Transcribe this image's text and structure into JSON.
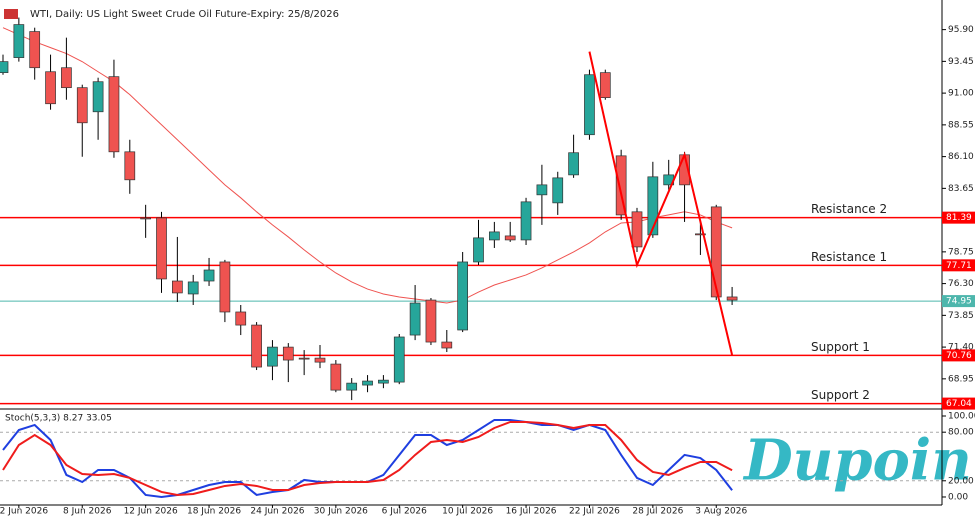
{
  "logo": "Dupoin",
  "chart_data": [
    {
      "type": "candlestick",
      "title": "WTI, Daily:  US Light Sweet Crude Oil Future-Expiry: 25/8/2026",
      "categories": [
        null,
        "2 Jun 2026",
        null,
        null,
        null,
        "8 Jun 2026",
        null,
        null,
        null,
        "12 Jun 2026",
        null,
        null,
        null,
        "18 Jun 2026",
        null,
        null,
        null,
        "24 Jun 2026",
        null,
        null,
        null,
        "30 Jun 2026",
        null,
        null,
        null,
        "6 Jul 2026",
        null,
        null,
        null,
        "10 Jul 2026",
        null,
        null,
        null,
        "16 Jul 2026",
        null,
        null,
        null,
        "22 Jul 2026",
        null,
        null,
        null,
        "28 Jul 2026",
        null,
        null,
        null,
        "3 Aug 2026",
        null
      ],
      "open": [
        92.58,
        93.74,
        95.75,
        92.65,
        92.96,
        91.42,
        89.56,
        92.27,
        86.47,
        81.37,
        81.37,
        76.5,
        75.5,
        76.5,
        77.97,
        74.11,
        73.1,
        69.93,
        71.4,
        70.55,
        70.55,
        70.09,
        68.08,
        68.47,
        68.62,
        68.7,
        72.33,
        75.03,
        71.79,
        72.72,
        77.97,
        79.67,
        79.98,
        79.67,
        83.15,
        82.53,
        84.69,
        87.79,
        92.58,
        86.16,
        81.84,
        80.06,
        83.92,
        86.24,
        80.14,
        82.22,
        75.27
      ],
      "high": [
        93.97,
        96.83,
        96.05,
        93.97,
        95.28,
        91.65,
        92.19,
        93.58,
        87.4,
        82.38,
        81.84,
        79.9,
        76.97,
        78.28,
        78.13,
        74.65,
        73.33,
        71.94,
        71.71,
        71.17,
        71.56,
        70.4,
        69.01,
        69.24,
        69.24,
        72.41,
        76.19,
        75.19,
        72.72,
        78.74,
        81.22,
        81.06,
        81.06,
        82.92,
        85.47,
        84.93,
        87.79,
        92.81,
        92.81,
        86.63,
        82.14,
        85.7,
        85.85,
        86.47,
        81.06,
        82.38,
        76.04
      ],
      "low": [
        92.42,
        93.43,
        92.04,
        89.72,
        90.49,
        86.09,
        87.4,
        86.01,
        83.23,
        79.83,
        75.58,
        74.88,
        74.65,
        76.12,
        73.33,
        72.33,
        69.63,
        68.85,
        68.7,
        69.24,
        69.78,
        67.92,
        67.31,
        67.92,
        68.23,
        68.54,
        71.94,
        71.56,
        71.02,
        72.56,
        77.74,
        79.05,
        79.52,
        79.28,
        80.83,
        81.6,
        84.46,
        87.4,
        90.49,
        81.22,
        78.74,
        79.83,
        83.54,
        81.06,
        78.51,
        75.03,
        74.65
      ],
      "close": [
        93.43,
        96.29,
        92.96,
        90.18,
        91.42,
        88.71,
        91.88,
        86.47,
        84.31,
        81.29,
        76.66,
        75.58,
        76.43,
        77.35,
        74.11,
        73.1,
        69.86,
        71.4,
        70.4,
        70.48,
        70.24,
        68.08,
        68.62,
        68.78,
        68.85,
        72.18,
        74.8,
        71.79,
        71.33,
        77.97,
        79.83,
        80.29,
        79.67,
        82.61,
        83.92,
        84.46,
        86.4,
        92.42,
        90.65,
        81.6,
        79.13,
        84.54,
        84.69,
        83.92,
        80.06,
        75.27,
        75.03
      ],
      "up_color": "#26a69a",
      "down_color": "#ef5350",
      "series": [
        {
          "color": "#ef5350",
          "values": [
            96.05,
            95.51,
            94.97,
            94.51,
            94.05,
            93.43,
            92.65,
            91.88,
            90.88,
            89.72,
            88.56,
            87.4,
            86.24,
            85.08,
            83.92,
            82.92,
            81.84,
            80.83,
            79.9,
            78.9,
            77.97,
            77.12,
            76.43,
            75.88,
            75.5,
            75.27,
            75.11,
            74.96,
            74.8,
            75.03,
            75.65,
            76.19,
            76.58,
            76.97,
            77.51,
            78.13,
            78.74,
            79.44,
            80.29,
            80.98,
            81.06,
            81.37,
            81.6,
            81.84,
            81.6,
            81.06,
            80.6
          ]
        }
      ],
      "trendline": {
        "color": "#ff0000",
        "x": [
          37,
          40,
          43,
          46
        ],
        "values": [
          94.2,
          77.74,
          86.24,
          70.79
        ]
      },
      "levels": [
        {
          "label": "Resistance 2",
          "value": 81.39
        },
        {
          "label": "Resistance 1",
          "value": 77.71
        },
        {
          "label": "Support 1",
          "value": 70.76
        },
        {
          "label": "Support 2",
          "value": 67.04
        }
      ],
      "level_color": "#ff0000",
      "last_price": 74.95,
      "last_color": "#4db6ac",
      "ylim": [
        66.7,
        97.8
      ],
      "yticks": [
        {
          "value": 95.9,
          "label": "95.90"
        },
        93.45,
        {
          "value": 91,
          "label": "91.00"
        },
        88.55,
        {
          "value": 86.1,
          "label": "86.10"
        },
        83.65,
        78.75,
        {
          "value": 76.3,
          "label": "76.30"
        },
        73.85,
        {
          "value": 71.4,
          "label": "71.40"
        },
        68.95
      ]
    },
    {
      "type": "line",
      "title": "Stoch(5,3,3) 8.27 33.05",
      "series": [
        {
          "color": "#1f3fe0",
          "values": [
            58.0,
            82.7,
            88.9,
            70.4,
            27.2,
            18.5,
            33.3,
            33.3,
            23.5,
            2.5,
            0,
            2.5,
            8.6,
            14.8,
            18.5,
            18.5,
            2.5,
            6.2,
            8.6,
            21.0,
            18.5,
            18.5,
            18.5,
            18.5,
            27.2,
            51.9,
            76.5,
            76.5,
            64.2,
            70.4,
            82.7,
            95.1,
            95.1,
            92.6,
            88.9,
            88.9,
            82.7,
            88.9,
            82.7,
            51.9,
            23.5,
            14.8,
            33.3,
            51.9,
            48.1,
            33.3,
            8.27
          ]
        },
        {
          "color": "#ef1c1c",
          "values": [
            33.3,
            64.2,
            76.5,
            64.2,
            39.5,
            28.4,
            27.2,
            28.4,
            23.5,
            14.8,
            6.2,
            2.5,
            3.7,
            8.6,
            13.6,
            16.0,
            13.6,
            8.6,
            8.6,
            14.8,
            17.3,
            18.5,
            18.5,
            18.5,
            21.0,
            33.3,
            51.9,
            67.9,
            70.4,
            67.9,
            74.1,
            85.2,
            92.6,
            92.6,
            91.4,
            88.9,
            85.2,
            88.9,
            88.9,
            70.4,
            45.7,
            30.9,
            27.2,
            35.8,
            43.2,
            43.2,
            33.05
          ]
        }
      ],
      "ylim": [
        -9.9,
        107.4
      ],
      "yticks": [
        {
          "value": 100,
          "label": "100.00"
        },
        {
          "value": 80,
          "label": "80.00"
        },
        {
          "value": 20,
          "label": "20.00"
        },
        {
          "value": 0,
          "label": "0.00"
        }
      ],
      "dashed": [
        80,
        20
      ]
    }
  ]
}
